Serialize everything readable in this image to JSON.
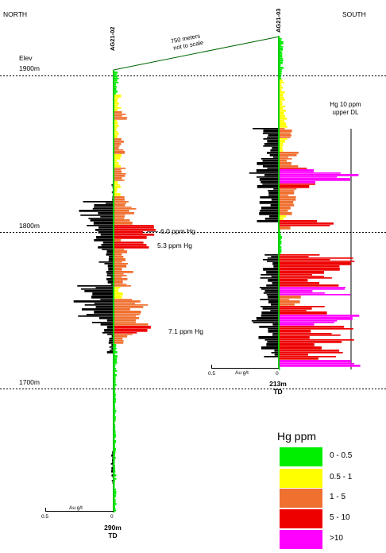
{
  "labels": {
    "north": "NORTH",
    "south": "SOUTH",
    "elev_caption": "Elev",
    "distance_line1": "750 meters",
    "distance_line2": "not to scale",
    "upper_dl_line1": "Hg 10 ppm",
    "upper_dl_line2": "upper DL"
  },
  "elevations": [
    {
      "name": "elev-1900",
      "label": "1900m",
      "value": 1900
    },
    {
      "name": "elev-1800",
      "label": "1800m",
      "value": 1800
    },
    {
      "name": "elev-1700",
      "label": "1700m",
      "value": 1700
    }
  ],
  "holes": [
    {
      "id": "AG21-02",
      "td_depth": "290m",
      "td_label": "TD",
      "au_scale_max": "0.5",
      "au_scale_zero": "0",
      "au_axis_label": "Au g/t",
      "annotations": [
        {
          "text": "6.0 ppm Hg",
          "hg": 6.0
        },
        {
          "text": "5.3 ppm Hg",
          "hg": 5.3
        },
        {
          "text": "7.1 ppm Hg",
          "hg": 7.1
        }
      ]
    },
    {
      "id": "AG21-03",
      "td_depth": "213m",
      "td_label": "TD",
      "au_scale_max": "0.5",
      "au_scale_zero": "0",
      "au_axis_label": "Au g/t",
      "annotations": []
    }
  ],
  "legend": {
    "title": "Hg ppm",
    "items": [
      {
        "label": "0 - 0.5",
        "color": "#00ee00"
      },
      {
        "label": "0.5 - 1",
        "color": "#ffff00"
      },
      {
        "label": "1 - 5",
        "color": "#f07030"
      },
      {
        "label": "5 - 10",
        "color": "#ee0000"
      },
      {
        "label": ">10",
        "color": "#ff00ff"
      }
    ]
  }
}
